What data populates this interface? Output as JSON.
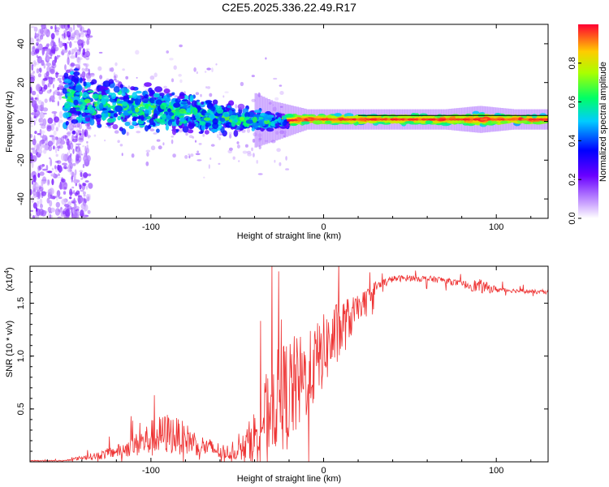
{
  "title": "C2E5.2025.336.22.49.R17",
  "chart_data": [
    {
      "type": "heatmap",
      "name": "spectrogram",
      "xlabel": "Height of straight line (km)",
      "ylabel": "Frequency (Hz)",
      "xlim": [
        -170,
        130
      ],
      "ylim": [
        -50,
        50
      ],
      "xticks": [
        -100,
        0,
        100
      ],
      "yticks": [
        -40,
        -20,
        0,
        20,
        40
      ],
      "colorbar": {
        "label": "Normalized spectral amplitude",
        "range": [
          0,
          1
        ],
        "ticks": [
          0.0,
          0.2,
          0.4,
          0.6,
          0.8
        ],
        "tick_labels": [
          "0.0",
          "0.2",
          "0.4",
          "0.6",
          "0.8"
        ],
        "colormap": [
          "#ffffff",
          "#9b30ff",
          "#0000ff",
          "#00ffff",
          "#00ff00",
          "#ffff00",
          "#ff0000"
        ]
      },
      "ridge": {
        "height_km": [
          -150,
          -130,
          -110,
          -90,
          -70,
          -50,
          -30,
          -10,
          10,
          30,
          50,
          70,
          90,
          110,
          130
        ],
        "center_hz": [
          12,
          9,
          7,
          5,
          3,
          1,
          0,
          1,
          1,
          1,
          1,
          1,
          1,
          1,
          1
        ],
        "spread_hz": [
          12,
          10,
          9,
          8,
          7,
          5,
          3,
          1.5,
          1.5,
          1.5,
          1.5,
          1.5,
          2,
          1.5,
          1.5
        ]
      }
    },
    {
      "type": "line",
      "name": "snr",
      "xlabel": "Height of straight line (km)",
      "ylabel": "SNR (10 * v/v)",
      "scale_label": "(x10",
      "scale_exp": "4",
      "xlim": [
        -170,
        130
      ],
      "ylim": [
        0,
        1.85
      ],
      "xticks": [
        -100,
        0,
        100
      ],
      "yticks": [
        0.5,
        1.0,
        1.5
      ],
      "ytick_labels": [
        "0.5",
        "1.0",
        "1.5"
      ],
      "color": "#ee3333",
      "x": [
        -170,
        -150,
        -140,
        -130,
        -120,
        -110,
        -100,
        -90,
        -80,
        -70,
        -60,
        -50,
        -40,
        -30,
        -20,
        -10,
        0,
        10,
        20,
        30,
        40,
        50,
        60,
        70,
        80,
        90,
        100,
        110,
        120,
        130
      ],
      "y": [
        0.01,
        0.01,
        0.04,
        0.06,
        0.1,
        0.15,
        0.22,
        0.27,
        0.22,
        0.15,
        0.1,
        0.08,
        0.25,
        0.55,
        0.65,
        0.8,
        1.05,
        1.25,
        1.45,
        1.65,
        1.73,
        1.74,
        1.73,
        1.72,
        1.68,
        1.66,
        1.63,
        1.62,
        1.61,
        1.6
      ],
      "noise": [
        0.005,
        0.005,
        0.02,
        0.04,
        0.06,
        0.1,
        0.18,
        0.2,
        0.15,
        0.1,
        0.08,
        0.06,
        0.25,
        0.45,
        0.55,
        0.4,
        0.35,
        0.3,
        0.12,
        0.06,
        0.03,
        0.03,
        0.03,
        0.03,
        0.03,
        0.07,
        0.03,
        0.02,
        0.02,
        0.02
      ]
    }
  ]
}
